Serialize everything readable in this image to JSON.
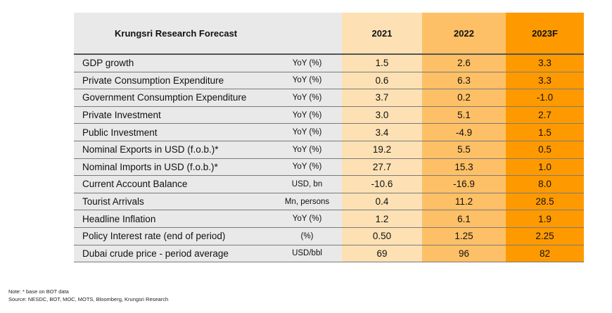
{
  "table": {
    "title": "Krungsri Research Forecast",
    "columns": [
      "2021",
      "2022",
      "2023F"
    ],
    "column_colors": {
      "label": "#e9e9e9",
      "2021": "#fde1b4",
      "2022": "#fec066",
      "2023F": "#fe9a00"
    },
    "rows": [
      {
        "label": "GDP growth",
        "unit": "YoY (%)",
        "values": [
          "1.5",
          "2.6",
          "3.3"
        ]
      },
      {
        "label": "Private Consumption Expenditure",
        "unit": "YoY (%)",
        "values": [
          "0.6",
          "6.3",
          "3.3"
        ]
      },
      {
        "label": "Government Consumption Expenditure",
        "unit": "YoY (%)",
        "values": [
          "3.7",
          "0.2",
          "-1.0"
        ]
      },
      {
        "label": "Private Investment",
        "unit": "YoY (%)",
        "values": [
          "3.0",
          "5.1",
          "2.7"
        ]
      },
      {
        "label": "Public Investment",
        "unit": "YoY (%)",
        "values": [
          "3.4",
          "-4.9",
          "1.5"
        ]
      },
      {
        "label": "Nominal Exports in USD (f.o.b.)*",
        "unit": "YoY (%)",
        "values": [
          "19.2",
          "5.5",
          "0.5"
        ]
      },
      {
        "label": "Nominal Imports in USD (f.o.b.)*",
        "unit": "YoY (%)",
        "values": [
          "27.7",
          "15.3",
          "1.0"
        ]
      },
      {
        "label": "Current Account Balance",
        "unit": "USD, bn",
        "values": [
          "-10.6",
          "-16.9",
          "8.0"
        ]
      },
      {
        "label": "Tourist Arrivals",
        "unit": "Mn, persons",
        "values": [
          "0.4",
          "11.2",
          "28.5"
        ]
      },
      {
        "label": "Headline Inflation",
        "unit": "YoY (%)",
        "values": [
          "1.2",
          "6.1",
          "1.9"
        ]
      },
      {
        "label": "Policy Interest rate (end of period)",
        "unit": "(%)",
        "values": [
          "0.50",
          "1.25",
          "2.25"
        ]
      },
      {
        "label": "Dubai crude price - period average",
        "unit": "USD/bbl",
        "values": [
          "69",
          "96",
          "82"
        ]
      }
    ]
  },
  "notes": {
    "note": "Note: * base on BOT data",
    "source": "Source: NESDC, BOT, MOC, MOTS, Bloomberg, Krungsri Research"
  }
}
